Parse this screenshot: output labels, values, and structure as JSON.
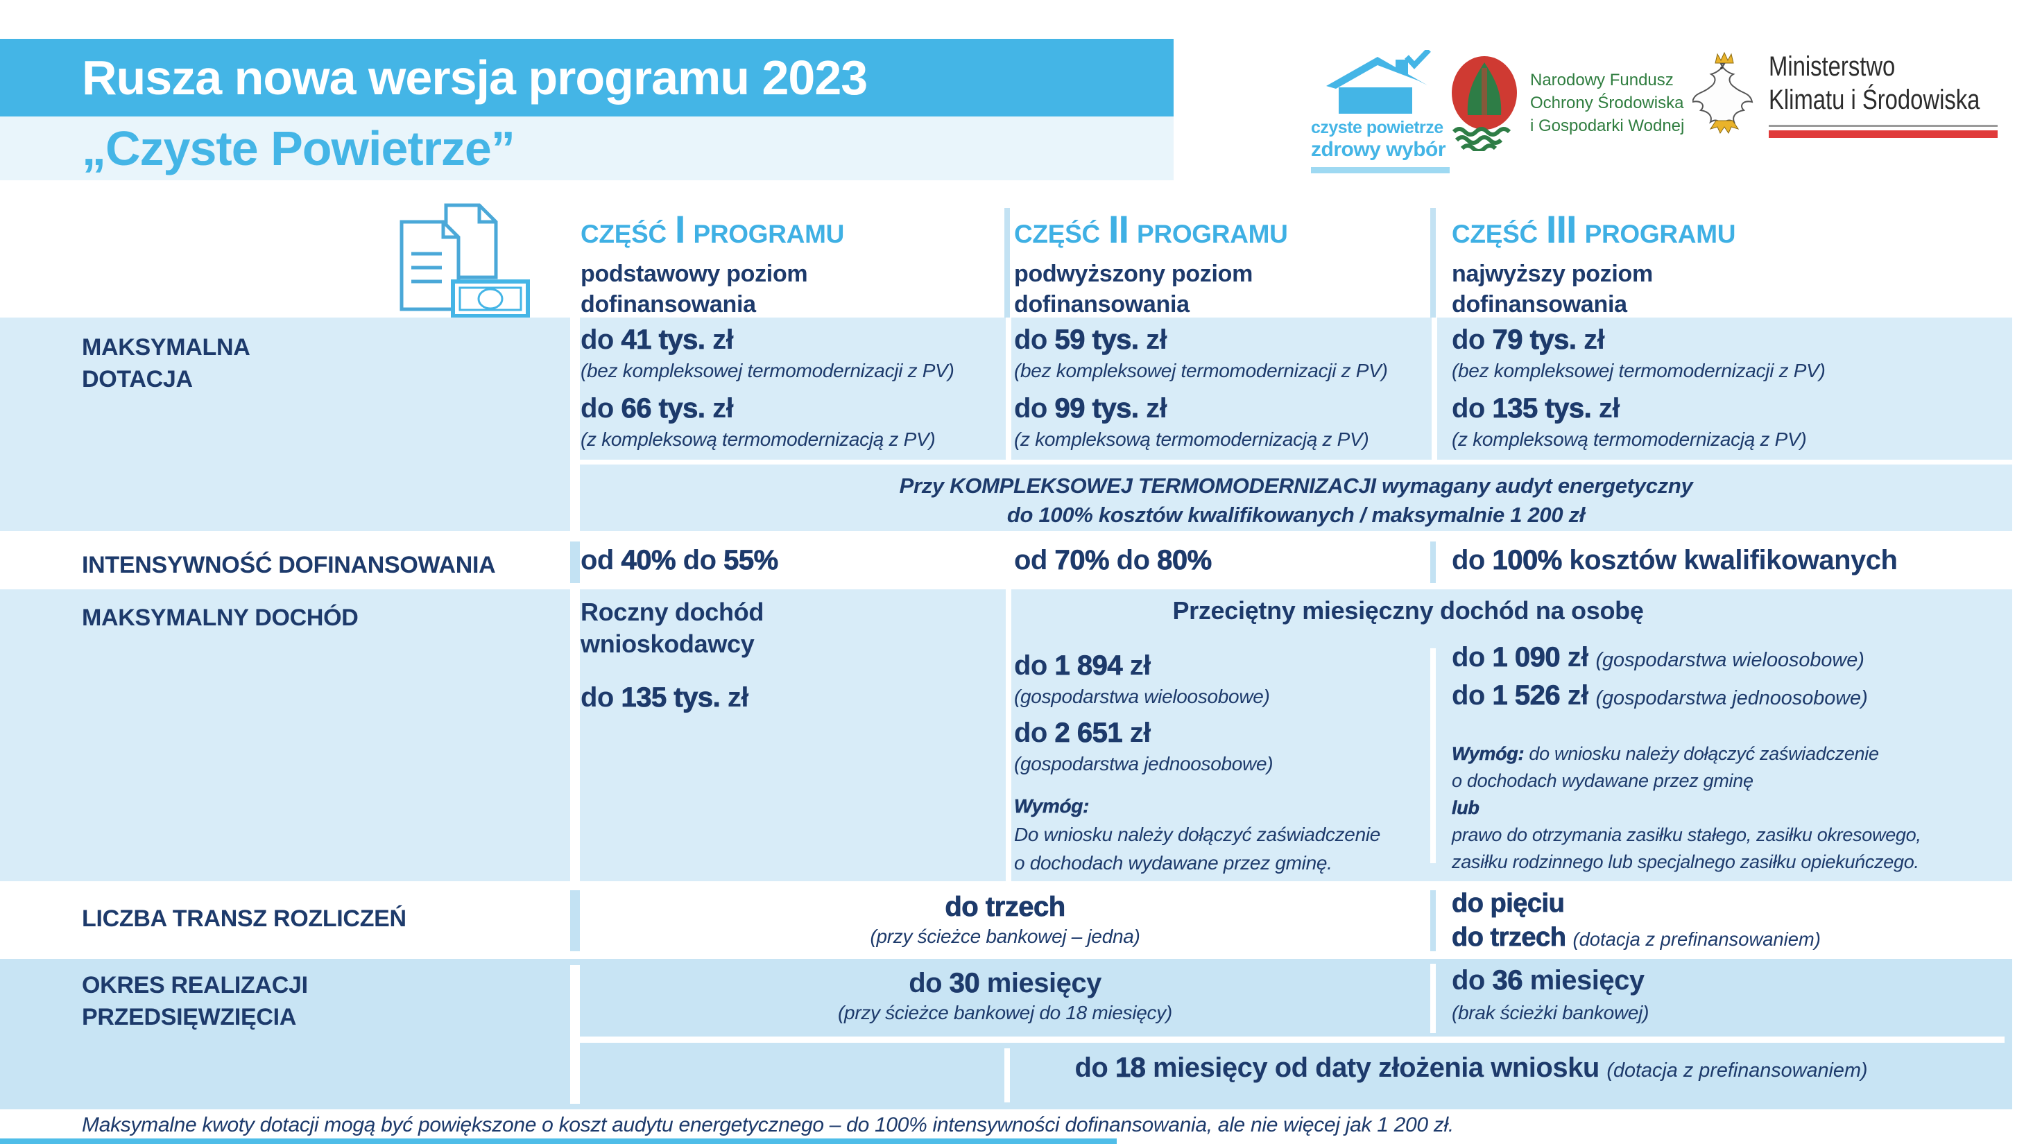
{
  "colors": {
    "accent_blue": "#44b5e6",
    "navy_text": "#1d3a6b",
    "row_light_blue": "#d8ecf8",
    "row_medium_blue": "#c8e4f4",
    "subtitle_band": "#e9f5fb",
    "pale_divider": "#c3e2f3",
    "ministry_red": "#e03a3a",
    "nfosigw_green": "#2f7d3f",
    "nfosigw_red": "#cf3a32"
  },
  "title": {
    "line1": "Rusza nowa wersja programu 2023",
    "line2": "„Czyste Powietrze”"
  },
  "logos": {
    "czyste_powietrze": {
      "line1": "czyste powietrze",
      "line2": "zdrowy wybór"
    },
    "nfosigw": {
      "line1": "Narodowy Fundusz",
      "line2": "Ochrony Środowiska",
      "line3": "i Gospodarki Wodnej"
    },
    "ministry": {
      "line1": "Ministerstwo",
      "line2": "Klimatu i Środowiska"
    }
  },
  "columns": [
    {
      "prefix": "CZĘŚĆ",
      "numeral": "I",
      "suffix": "PROGRAMU",
      "sub1": "podstawowy poziom",
      "sub2": "dofinansowania"
    },
    {
      "prefix": "CZĘŚĆ",
      "numeral": "II",
      "suffix": "PROGRAMU",
      "sub1": "podwyższony poziom",
      "sub2": "dofinansowania"
    },
    {
      "prefix": "CZĘŚĆ",
      "numeral": "III",
      "suffix": "PROGRAMU",
      "sub1": "najwyższy poziom",
      "sub2": "dofinansowania"
    }
  ],
  "row_labels": {
    "dotacja_l1": "MAKSYMALNA",
    "dotacja_l2": "DOTACJA",
    "intensywnosc": "INTENSYWNOŚĆ DOFINANSOWANIA",
    "dochod": "MAKSYMALNY DOCHÓD",
    "transze": "LICZBA TRANSZ ROZLICZEŃ",
    "okres_l1": "OKRES REALIZACJI",
    "okres_l2": "PRZEDSIĘWZIĘCIA"
  },
  "dotacja": {
    "cells": [
      {
        "v1": [
          {
            "t": "do ",
            "s": "m"
          },
          {
            "t": "41 tys.",
            "s": "b"
          },
          {
            "t": " zł",
            "s": "m"
          }
        ],
        "n1": "(bez kompleksowej termomodernizacji z PV)",
        "v2": [
          {
            "t": "do ",
            "s": "m"
          },
          {
            "t": "66 tys.",
            "s": "b"
          },
          {
            "t": " zł",
            "s": "m"
          }
        ],
        "n2": "(z kompleksową termomodernizacją z PV)"
      },
      {
        "v1": [
          {
            "t": "do ",
            "s": "m"
          },
          {
            "t": "59 tys.",
            "s": "b"
          },
          {
            "t": " zł",
            "s": "m"
          }
        ],
        "n1": "(bez kompleksowej termomodernizacji z PV)",
        "v2": [
          {
            "t": "do ",
            "s": "m"
          },
          {
            "t": "99 tys.",
            "s": "b"
          },
          {
            "t": " zł",
            "s": "m"
          }
        ],
        "n2": "(z kompleksową termomodernizacją z PV)"
      },
      {
        "v1": [
          {
            "t": "do ",
            "s": "m"
          },
          {
            "t": "79 tys.",
            "s": "b"
          },
          {
            "t": " zł",
            "s": "m"
          }
        ],
        "n1": "(bez kompleksowej termomodernizacji z PV)",
        "v2": [
          {
            "t": "do ",
            "s": "m"
          },
          {
            "t": "135 tys.",
            "s": "b"
          },
          {
            "t": " zł",
            "s": "m"
          }
        ],
        "n2": "(z kompleksową termomodernizacją z PV)"
      }
    ],
    "note_l1": "Przy KOMPLEKSOWEJ TERMOMODERNIZACJI wymagany audyt energetyczny",
    "note_l2": "do 100% kosztów kwalifikowanych / maksymalnie 1 200 zł"
  },
  "intensywnosc": {
    "cells": [
      [
        {
          "t": "od ",
          "s": "m"
        },
        {
          "t": "40%",
          "s": "b"
        },
        {
          "t": " do ",
          "s": "m"
        },
        {
          "t": "55%",
          "s": "b"
        }
      ],
      [
        {
          "t": "od ",
          "s": "m"
        },
        {
          "t": "70%",
          "s": "b"
        },
        {
          "t": " do ",
          "s": "m"
        },
        {
          "t": "80%",
          "s": "b"
        }
      ],
      [
        {
          "t": "do ",
          "s": "m"
        },
        {
          "t": "100%",
          "s": "b"
        },
        {
          "t": " kosztów kwalifikowanych",
          "s": "m"
        }
      ]
    ]
  },
  "dochod": {
    "col1_title_l1": "Roczny dochód",
    "col1_title_l2": "wnioskodawcy",
    "col1_value": [
      {
        "t": "do ",
        "s": "m"
      },
      {
        "t": "135 tys.",
        "s": "b"
      },
      {
        "t": " zł",
        "s": "m"
      }
    ],
    "shared_header": "Przeciętny miesięczny dochód na osobę",
    "col2": {
      "v1": [
        {
          "t": "do ",
          "s": "m"
        },
        {
          "t": "1 894",
          "s": "b"
        },
        {
          "t": " zł",
          "s": "m"
        }
      ],
      "n1": "(gospodarstwa wieloosobowe)",
      "v2": [
        {
          "t": "do ",
          "s": "m"
        },
        {
          "t": "2 651",
          "s": "b"
        },
        {
          "t": " zł",
          "s": "m"
        }
      ],
      "n2": "(gospodarstwa jednoosobowe)",
      "req": [
        {
          "t": "Wymóg:",
          "s": "b"
        },
        {
          "br": true
        },
        {
          "t": "Do wniosku należy dołączyć zaświadczenie",
          "s": ""
        },
        {
          "br": true
        },
        {
          "t": "o dochodach wydawane przez gminę.",
          "s": ""
        }
      ]
    },
    "col3": {
      "v1": [
        {
          "t": "do ",
          "s": "m"
        },
        {
          "t": "1 090",
          "s": "b"
        },
        {
          "t": " zł",
          "s": "m"
        },
        {
          "t": "  ",
          "s": ""
        },
        {
          "t": "(gospodarstwa wieloosobowe)",
          "s": "i"
        }
      ],
      "v2": [
        {
          "t": "do ",
          "s": "m"
        },
        {
          "t": "1 526",
          "s": "b"
        },
        {
          "t": " zł",
          "s": "m"
        },
        {
          "t": "  ",
          "s": ""
        },
        {
          "t": "(gospodarstwa jednoosobowe)",
          "s": "i"
        }
      ],
      "req": [
        {
          "t": "Wymóg: ",
          "s": "b"
        },
        {
          "t": "do wniosku należy dołączyć zaświadczenie",
          "s": ""
        },
        {
          "br": true
        },
        {
          "t": "o dochodach wydawane przez gminę",
          "s": ""
        },
        {
          "br": true
        },
        {
          "t": "lub",
          "s": "b"
        },
        {
          "br": true
        },
        {
          "t": "prawo do otrzymania zasiłku stałego, zasiłku okresowego,",
          "s": ""
        },
        {
          "br": true
        },
        {
          "t": "zasiłku rodzinnego lub specjalnego zasiłku opiekuńczego.",
          "s": ""
        }
      ]
    }
  },
  "transze": {
    "merged_value": [
      {
        "t": "do trzech",
        "s": "b"
      }
    ],
    "merged_note": "(przy ścieżce bankowej – jedna)",
    "col3_l1": [
      {
        "t": "do pięciu",
        "s": "b"
      }
    ],
    "col3_l2": [
      {
        "t": "do trzech",
        "s": "b"
      },
      {
        "t": " ",
        "s": ""
      },
      {
        "t": "(dotacja z prefinansowaniem)",
        "s": "i"
      }
    ]
  },
  "okres": {
    "merged_value": [
      {
        "t": "do ",
        "s": "m"
      },
      {
        "t": "30",
        "s": "b"
      },
      {
        "t": " miesięcy",
        "s": "m"
      }
    ],
    "merged_note": "(przy ścieżce bankowej do 18 miesięcy)",
    "col3_value": [
      {
        "t": "do ",
        "s": "m"
      },
      {
        "t": "36",
        "s": "b"
      },
      {
        "t": " miesięcy",
        "s": "m"
      }
    ],
    "col3_note": "(brak ścieżki bankowej)",
    "subrow": [
      {
        "t": "do ",
        "s": "m"
      },
      {
        "t": "18",
        "s": "b"
      },
      {
        "t": " miesięcy od daty złożenia wniosku",
        "s": "m"
      },
      {
        "t": " ",
        "s": ""
      },
      {
        "t": "(dotacja z prefinansowaniem)",
        "s": "i"
      }
    ]
  },
  "footer": {
    "note": "Maksymalne kwoty dotacji mogą być powiększone o koszt audytu energetycznego – do 100% intensywności dofinansowania, ale nie więcej jak 1 200 zł."
  }
}
